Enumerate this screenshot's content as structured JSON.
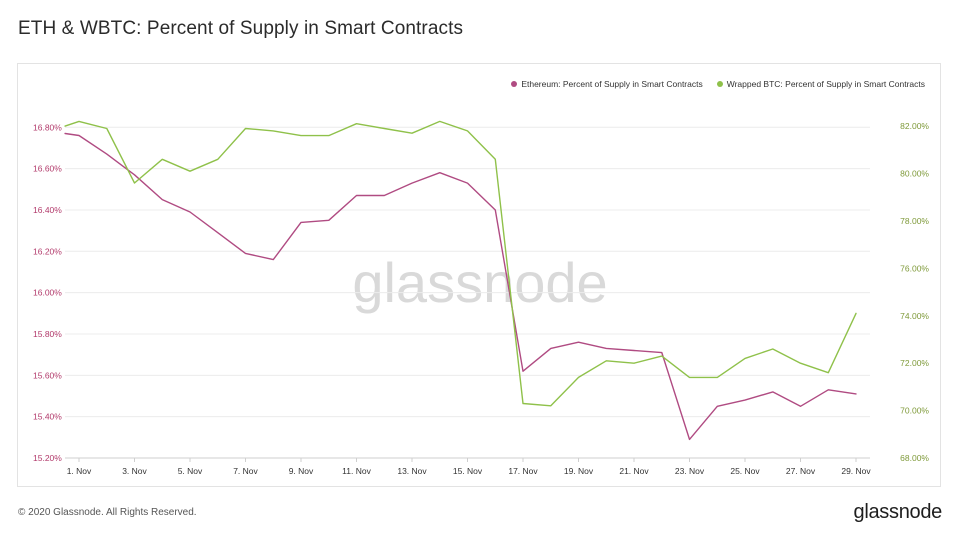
{
  "header": {
    "title": "ETH & WBTC: Percent of Supply in Smart Contracts"
  },
  "footer": {
    "copyright": "© 2020 Glassnode. All Rights Reserved.",
    "brand": "glassnode"
  },
  "watermark": "glassnode",
  "colors": {
    "eth": "#b04b82",
    "wbtc": "#8fc14a",
    "left_axis": "#b23a6b",
    "right_axis": "#7f9a3a",
    "grid": "#ececec"
  },
  "chart_data": {
    "type": "line",
    "title": "ETH & WBTC: Percent of Supply in Smart Contracts",
    "x_tick_labels": [
      "1. Nov",
      "3. Nov",
      "5. Nov",
      "7. Nov",
      "9. Nov",
      "11. Nov",
      "13. Nov",
      "15. Nov",
      "17. Nov",
      "19. Nov",
      "21. Nov",
      "23. Nov",
      "25. Nov",
      "27. Nov",
      "29. Nov"
    ],
    "x": [
      0.5,
      1,
      2,
      3,
      4,
      5,
      6,
      7,
      8,
      9,
      10,
      11,
      12,
      13,
      14,
      15,
      16,
      17,
      18,
      19,
      20,
      21,
      22,
      23,
      24,
      25,
      26,
      27,
      28,
      29
    ],
    "left_axis": {
      "ticks": [
        "16.80%",
        "16.60%",
        "16.40%",
        "16.20%",
        "16.00%",
        "15.80%",
        "15.60%",
        "15.40%",
        "15.20%"
      ],
      "ylim": [
        15.2,
        16.84
      ]
    },
    "right_axis": {
      "ticks": [
        "82.00%",
        "80.00%",
        "78.00%",
        "76.00%",
        "74.00%",
        "72.00%",
        "70.00%",
        "68.00%"
      ],
      "ylim": [
        68.0,
        82.3
      ]
    },
    "legend_position": "top-right",
    "grid": true,
    "series": [
      {
        "name": "Ethereum: Percent of Supply in Smart Contracts",
        "axis": "left",
        "values": [
          16.77,
          16.76,
          16.67,
          16.57,
          16.45,
          16.39,
          16.29,
          16.19,
          16.16,
          16.34,
          16.35,
          16.47,
          16.47,
          16.53,
          16.58,
          16.53,
          16.4,
          15.62,
          15.73,
          15.76,
          15.73,
          15.72,
          15.71,
          15.29,
          15.45,
          15.48,
          15.52,
          15.45,
          15.53,
          15.51
        ]
      },
      {
        "name": "Wrapped BTC: Percent of Supply in Smart Contracts",
        "axis": "right",
        "values": [
          82.0,
          82.2,
          81.9,
          79.6,
          80.6,
          80.1,
          80.6,
          81.9,
          81.8,
          81.6,
          81.6,
          82.1,
          81.9,
          81.7,
          82.2,
          81.8,
          80.6,
          70.3,
          70.2,
          71.4,
          72.1,
          72.0,
          72.3,
          71.4,
          71.4,
          72.2,
          72.6,
          72.0,
          71.6,
          74.1
        ]
      }
    ]
  }
}
